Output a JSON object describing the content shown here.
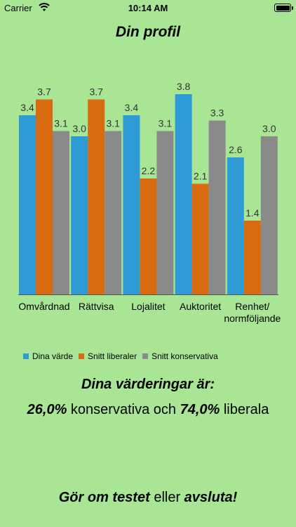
{
  "status_bar": {
    "carrier": "Carrier",
    "time": "10:14 AM"
  },
  "title": "Din profil",
  "colors": {
    "background": "#a8e695",
    "series": [
      "#2f9bd6",
      "#d86a10",
      "#8a8a8a"
    ]
  },
  "chart_data": {
    "type": "bar",
    "categories": [
      "Omvårdnad",
      "Rättvisa",
      "Lojalitet",
      "Auktoritet",
      "Renhet/\nnormföljande"
    ],
    "series": [
      {
        "name": "Dina värde",
        "values": [
          3.4,
          3.0,
          3.4,
          3.8,
          2.6
        ],
        "labels": [
          "3.4",
          "3.0",
          "3.4",
          "3.8",
          "2.6"
        ]
      },
      {
        "name": "Snitt liberaler",
        "values": [
          3.7,
          3.7,
          2.2,
          2.1,
          1.4
        ],
        "labels": [
          "3.7",
          "3.7",
          "2.2",
          "2.1",
          "1.4"
        ]
      },
      {
        "name": "Snitt konservativa",
        "values": [
          3.1,
          3.1,
          3.1,
          3.3,
          3.0
        ],
        "labels": [
          "3.1",
          "3.1",
          "3.1",
          "3.3",
          "3.0"
        ]
      }
    ],
    "ylim": [
      0,
      4
    ],
    "grid": false,
    "legend_position": "bottom-left"
  },
  "result": {
    "heading": "Dina värderingar är:",
    "conservative_value": "26,0%",
    "conservative_label": " konservativa och ",
    "liberal_value": "74,0%",
    "liberal_label": " liberala"
  },
  "footer": {
    "retake_label": "Gör om testet",
    "middle": " eller ",
    "quit_label": "avsluta!"
  }
}
